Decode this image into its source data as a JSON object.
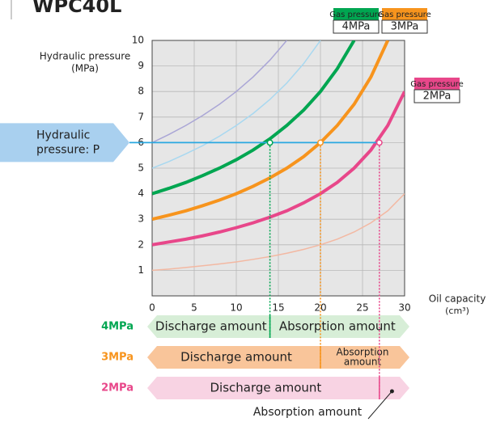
{
  "chart_data": {
    "type": "line",
    "title": "WPC40L",
    "y_label": [
      "Hydraulic pressure",
      "(MPa)"
    ],
    "x_label": [
      "Oil capacity",
      "(cm³)"
    ],
    "x": [
      0,
      2,
      4,
      6,
      8,
      10,
      12,
      14,
      16,
      18,
      20,
      22,
      24,
      26,
      28,
      30
    ],
    "series": [
      {
        "color": "#aaa6d6",
        "width": 1.5,
        "values": [
          6,
          6.32,
          6.67,
          7.06,
          7.5,
          8,
          8.57,
          9.23,
          10,
          null,
          null,
          null,
          null,
          null,
          null,
          null
        ]
      },
      {
        "color": "#a8d8f0",
        "width": 1.5,
        "values": [
          5,
          5.26,
          5.56,
          5.88,
          6.25,
          6.67,
          7.14,
          7.69,
          8.33,
          9.09,
          10,
          null,
          null,
          null,
          null,
          null
        ]
      },
      {
        "color": "#f3b8a2",
        "width": 1.5,
        "values": [
          1,
          1.05,
          1.11,
          1.18,
          1.25,
          1.33,
          1.43,
          1.54,
          1.67,
          1.82,
          2,
          2.22,
          2.5,
          2.86,
          3.33,
          4
        ]
      },
      {
        "name": "4MPa",
        "legend_title": "Gas pressure",
        "color": "#00a651",
        "width": 4,
        "values": [
          4,
          4.21,
          4.44,
          4.71,
          5,
          5.33,
          5.71,
          6.15,
          6.67,
          7.27,
          8,
          8.89,
          10,
          null,
          null,
          null
        ]
      },
      {
        "name": "3MPa",
        "legend_title": "Gas pressure",
        "color": "#f7941d",
        "width": 4,
        "values": [
          3,
          3.16,
          3.33,
          3.53,
          3.75,
          4,
          4.29,
          4.62,
          5,
          5.45,
          6,
          6.67,
          7.5,
          8.57,
          10,
          null
        ]
      },
      {
        "name": "2MPa",
        "legend_title": "Gas pressure",
        "color": "#e8478a",
        "width": 4,
        "values": [
          2,
          2.11,
          2.22,
          2.35,
          2.5,
          2.67,
          2.86,
          3.08,
          3.33,
          3.64,
          4,
          4.44,
          5,
          5.71,
          6.67,
          8
        ]
      }
    ],
    "xlim": [
      0,
      30
    ],
    "ylim": [
      0,
      10
    ],
    "xticks": [
      0,
      5,
      10,
      15,
      20,
      25,
      30
    ],
    "yticks": [
      1,
      2,
      3,
      4,
      5,
      6,
      7,
      8,
      9,
      10
    ],
    "grid": true,
    "hydraulic_pressure": {
      "label": [
        "Hydraulic",
        "pressure: P"
      ],
      "value": 6,
      "color": "#29a8e0"
    },
    "amounts": [
      {
        "name": "4MPa",
        "split": 14,
        "color": "#00a651",
        "fill": "#d7eed7",
        "discharge": "Discharge amount",
        "absorption": [
          "Absorption amount"
        ]
      },
      {
        "name": "3MPa",
        "split": 20,
        "color": "#f7941d",
        "fill": "#f9c59a",
        "discharge": "Discharge amount",
        "absorption": [
          "Absorption",
          "amount"
        ]
      },
      {
        "name": "2MPa",
        "split": 27,
        "color": "#e8478a",
        "fill": "#f8d3e3",
        "discharge": "Discharge amount",
        "absorption": [
          "Absorption amount"
        ],
        "absorption_outside": true
      }
    ]
  }
}
